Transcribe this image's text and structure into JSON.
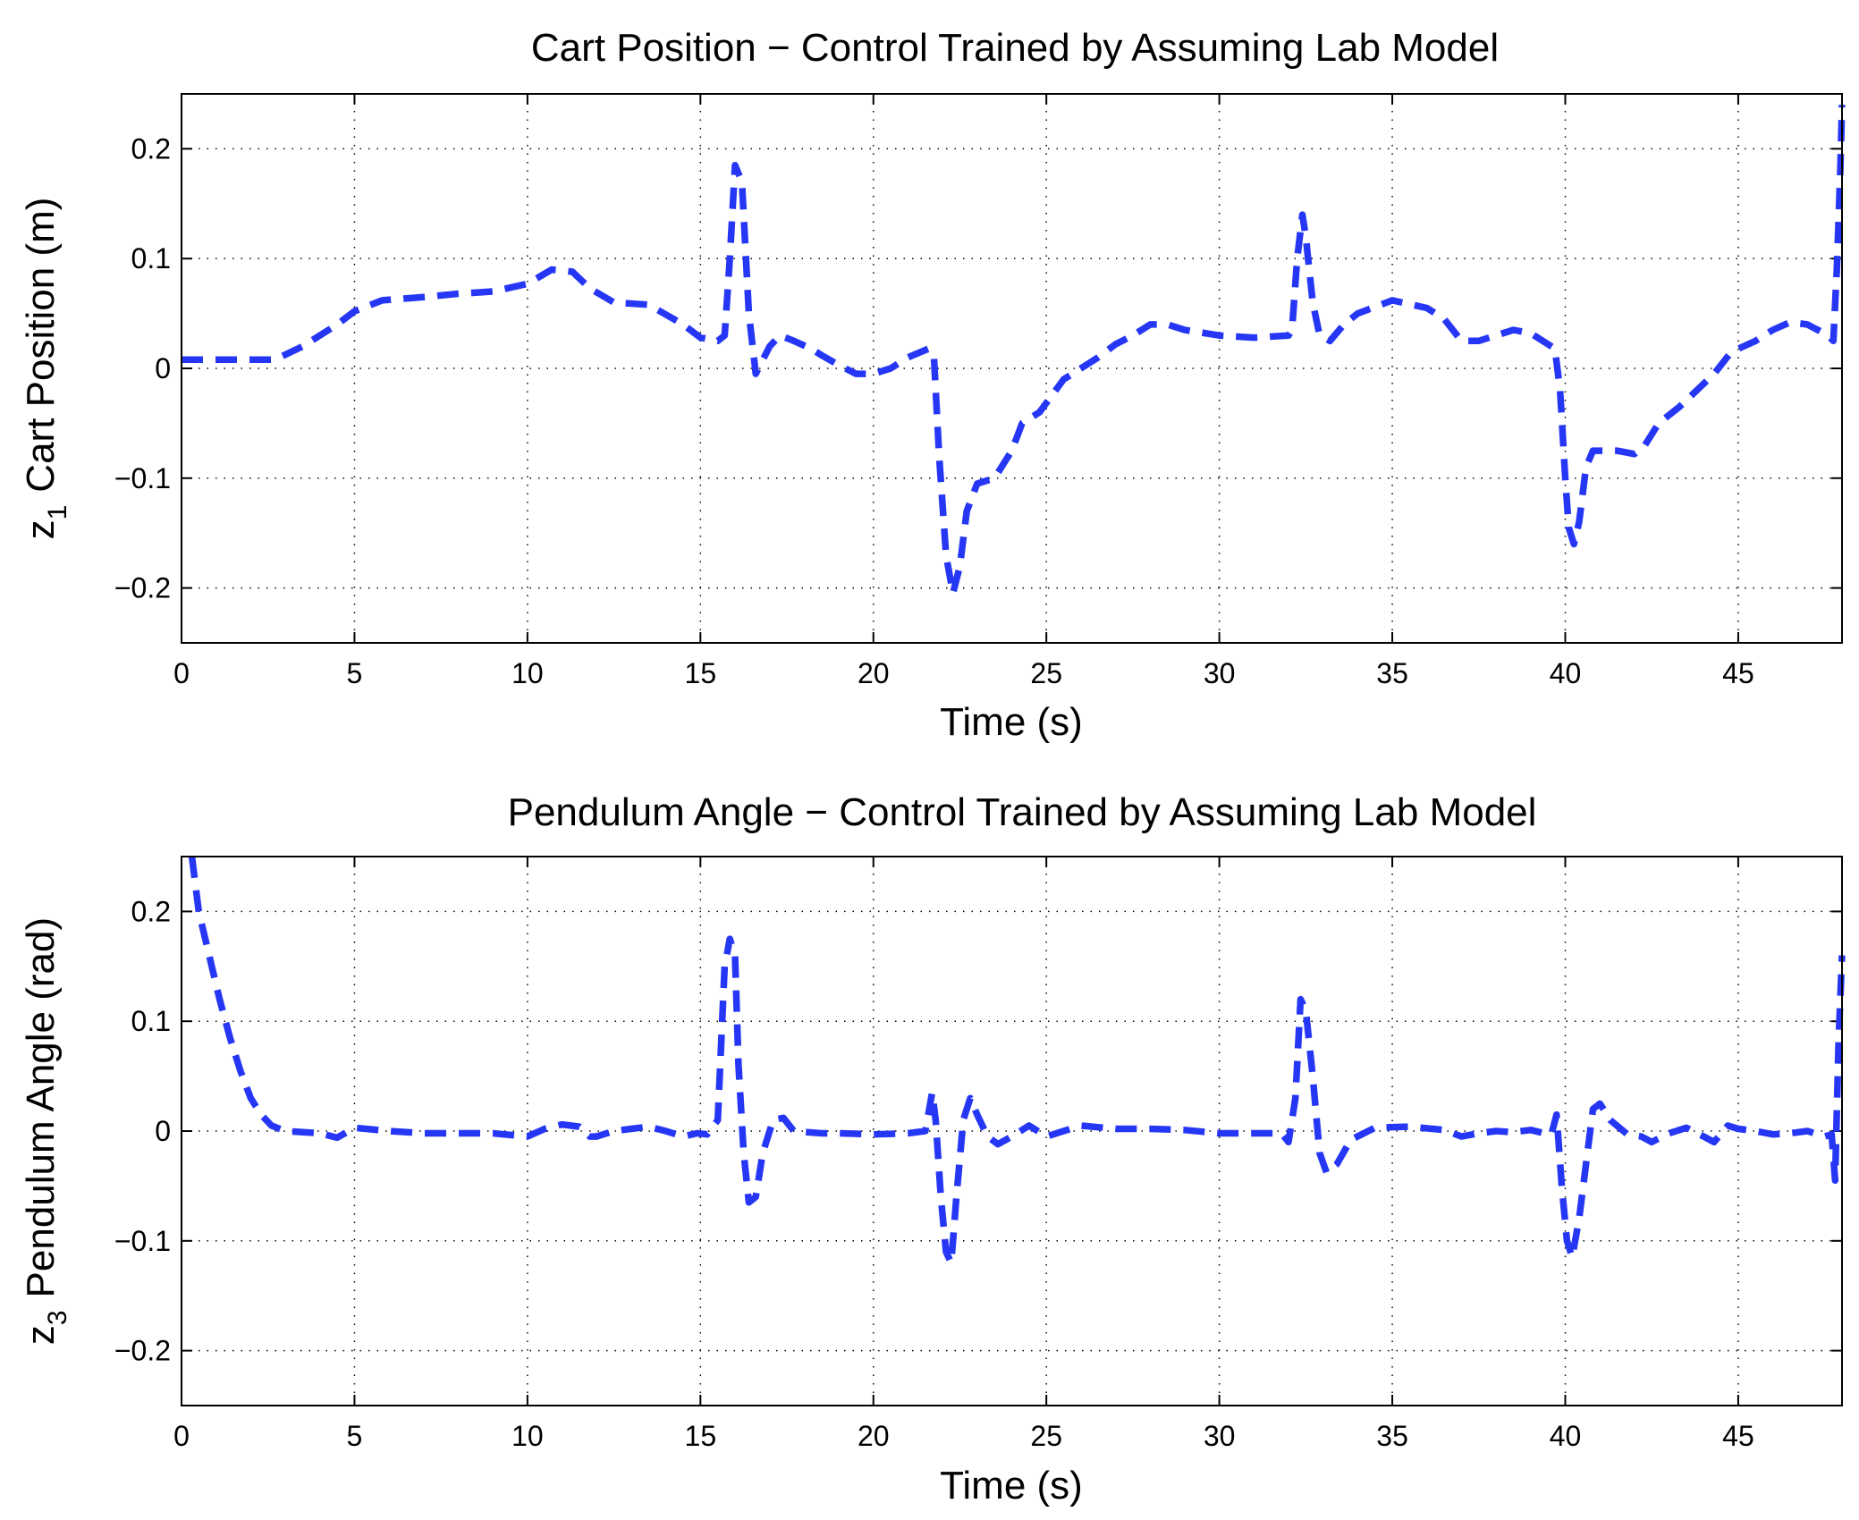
{
  "chart_data": [
    {
      "type": "line",
      "title": "Cart Position − Control Trained by Assuming Lab Model",
      "xlabel": "Time (s)",
      "ylabel_var": "z",
      "ylabel_sub": "1",
      "ylabel_text": "Cart Position (m)",
      "xlim": [
        0,
        48
      ],
      "ylim": [
        -0.25,
        0.25
      ],
      "xticks": [
        0,
        5,
        10,
        15,
        20,
        25,
        30,
        35,
        40,
        45
      ],
      "xtick_labels": [
        "0",
        "5",
        "10",
        "15",
        "20",
        "25",
        "30",
        "35",
        "40",
        "45"
      ],
      "yticks": [
        0.2,
        0.1,
        0,
        -0.1,
        -0.2
      ],
      "ytick_labels": [
        "0.2",
        "0.1",
        "0",
        "−0.1",
        "−0.2"
      ],
      "grid": true,
      "series": [
        {
          "name": "z1",
          "color": "#2537f5",
          "style": "dashed",
          "x": [
            0,
            2.7,
            3.5,
            4.5,
            5.0,
            5.8,
            7.0,
            8.0,
            9.0,
            10.0,
            10.7,
            11.3,
            11.8,
            12.5,
            13.5,
            14.5,
            15.0,
            15.5,
            15.7,
            15.85,
            16.0,
            16.2,
            16.4,
            16.6,
            17.0,
            17.3,
            17.7,
            18.2,
            18.5,
            19.0,
            19.5,
            20.0,
            20.5,
            21.0,
            21.6,
            21.75,
            21.9,
            22.1,
            22.3,
            22.5,
            22.7,
            23.0,
            23.5,
            24.0,
            24.3,
            24.8,
            25.5,
            26.5,
            27.0,
            27.5,
            28.0,
            28.5,
            29.0,
            30.0,
            31.0,
            32.0,
            32.1,
            32.25,
            32.4,
            32.5,
            32.7,
            32.9,
            33.2,
            33.6,
            34.0,
            35.0,
            36.0,
            36.5,
            37.0,
            37.5,
            38.0,
            38.5,
            39.0,
            39.5,
            39.7,
            39.85,
            40.0,
            40.1,
            40.25,
            40.4,
            40.6,
            40.8,
            41.5,
            42.0,
            42.3,
            42.7,
            43.3,
            43.8,
            44.3,
            44.8,
            45.5,
            46.0,
            46.5,
            47.0,
            47.3,
            47.6,
            47.75,
            47.85,
            47.95,
            48.0
          ],
          "y": [
            0.008,
            0.008,
            0.02,
            0.04,
            0.052,
            0.062,
            0.065,
            0.068,
            0.07,
            0.077,
            0.09,
            0.088,
            0.073,
            0.06,
            0.058,
            0.04,
            0.028,
            0.025,
            0.03,
            0.1,
            0.185,
            0.17,
            0.05,
            -0.005,
            0.02,
            0.03,
            0.025,
            0.018,
            0.012,
            0.003,
            -0.005,
            -0.005,
            0.0,
            0.01,
            0.018,
            0.01,
            -0.08,
            -0.17,
            -0.205,
            -0.18,
            -0.13,
            -0.105,
            -0.1,
            -0.075,
            -0.05,
            -0.04,
            -0.01,
            0.01,
            0.022,
            0.03,
            0.04,
            0.04,
            0.035,
            0.03,
            0.028,
            0.03,
            0.035,
            0.1,
            0.14,
            0.12,
            0.06,
            0.03,
            0.025,
            0.04,
            0.05,
            0.062,
            0.055,
            0.045,
            0.025,
            0.025,
            0.03,
            0.035,
            0.032,
            0.022,
            0.018,
            -0.02,
            -0.1,
            -0.145,
            -0.16,
            -0.14,
            -0.09,
            -0.075,
            -0.075,
            -0.078,
            -0.07,
            -0.05,
            -0.035,
            -0.02,
            -0.005,
            0.015,
            0.025,
            0.035,
            0.042,
            0.04,
            0.035,
            0.03,
            0.025,
            0.09,
            0.18,
            0.24
          ]
        }
      ]
    },
    {
      "type": "line",
      "title": "Pendulum Angle − Control Trained by Assuming Lab Model",
      "xlabel": "Time (s)",
      "ylabel_var": "z",
      "ylabel_sub": "3",
      "ylabel_text": "Pendulum Angle (rad)",
      "xlim": [
        0,
        48
      ],
      "ylim": [
        -0.25,
        0.25
      ],
      "xticks": [
        0,
        5,
        10,
        15,
        20,
        25,
        30,
        35,
        40,
        45
      ],
      "xtick_labels": [
        "0",
        "5",
        "10",
        "15",
        "20",
        "25",
        "30",
        "35",
        "40",
        "45"
      ],
      "yticks": [
        0.2,
        0.1,
        0,
        -0.1,
        -0.2
      ],
      "ytick_labels": [
        "0.2",
        "0.1",
        "0",
        "−0.1",
        "−0.2"
      ],
      "grid": true,
      "series": [
        {
          "name": "z3",
          "color": "#2537f5",
          "style": "dashed",
          "x": [
            0.3,
            0.5,
            0.8,
            1.1,
            1.4,
            1.7,
            2.0,
            2.3,
            2.6,
            3.0,
            4.0,
            4.5,
            5.0,
            6.0,
            7.0,
            8.0,
            9.0,
            10.0,
            10.5,
            11.0,
            11.5,
            11.8,
            12.0,
            12.5,
            13.0,
            13.5,
            14.0,
            14.5,
            14.9,
            15.2,
            15.5,
            15.7,
            15.85,
            16.0,
            16.1,
            16.25,
            16.4,
            16.6,
            16.8,
            17.1,
            17.4,
            17.7,
            18.5,
            19.0,
            20.0,
            21.0,
            21.5,
            21.7,
            21.8,
            21.95,
            22.1,
            22.25,
            22.4,
            22.6,
            22.8,
            23.0,
            23.3,
            23.6,
            24.0,
            24.5,
            25.0,
            25.5,
            26.0,
            27.0,
            28.0,
            29.0,
            30.0,
            31.0,
            31.8,
            32.0,
            32.2,
            32.35,
            32.5,
            32.7,
            32.9,
            33.1,
            33.4,
            33.8,
            34.5,
            35.5,
            36.5,
            37.0,
            37.5,
            38.0,
            38.5,
            39.0,
            39.4,
            39.6,
            39.75,
            39.9,
            40.05,
            40.2,
            40.4,
            40.6,
            40.8,
            41.0,
            41.3,
            41.8,
            42.2,
            42.5,
            43.0,
            43.5,
            44.0,
            44.3,
            44.7,
            45.0,
            45.5,
            46.0,
            46.5,
            47.0,
            47.5,
            47.7,
            47.8,
            47.9,
            48.0
          ],
          "y": [
            0.25,
            0.2,
            0.16,
            0.12,
            0.085,
            0.055,
            0.03,
            0.015,
            0.005,
            0.0,
            -0.002,
            -0.006,
            0.003,
            0.0,
            -0.002,
            -0.002,
            -0.002,
            -0.005,
            0.002,
            0.006,
            0.004,
            -0.005,
            -0.005,
            0.0,
            0.002,
            0.004,
            0.0,
            -0.005,
            -0.002,
            -0.003,
            0.01,
            0.15,
            0.175,
            0.16,
            0.06,
            -0.02,
            -0.065,
            -0.06,
            -0.02,
            0.01,
            0.012,
            0.0,
            -0.002,
            -0.002,
            -0.003,
            -0.002,
            0.0,
            0.035,
            0.01,
            -0.06,
            -0.11,
            -0.12,
            -0.06,
            0.01,
            0.03,
            0.015,
            -0.005,
            -0.012,
            -0.005,
            0.005,
            -0.005,
            0.0,
            0.005,
            0.002,
            0.002,
            0.001,
            -0.002,
            -0.002,
            -0.002,
            -0.01,
            0.03,
            0.12,
            0.11,
            0.05,
            -0.02,
            -0.038,
            -0.03,
            -0.008,
            0.003,
            0.004,
            0.001,
            -0.005,
            -0.002,
            0.0,
            -0.001,
            0.001,
            -0.002,
            -0.003,
            0.015,
            -0.05,
            -0.1,
            -0.115,
            -0.08,
            -0.03,
            0.02,
            0.025,
            0.01,
            -0.003,
            -0.005,
            -0.01,
            -0.002,
            0.003,
            -0.005,
            -0.01,
            0.005,
            0.002,
            0.0,
            -0.003,
            -0.002,
            0.0,
            -0.005,
            -0.003,
            -0.045,
            0.08,
            0.16
          ]
        }
      ]
    }
  ]
}
